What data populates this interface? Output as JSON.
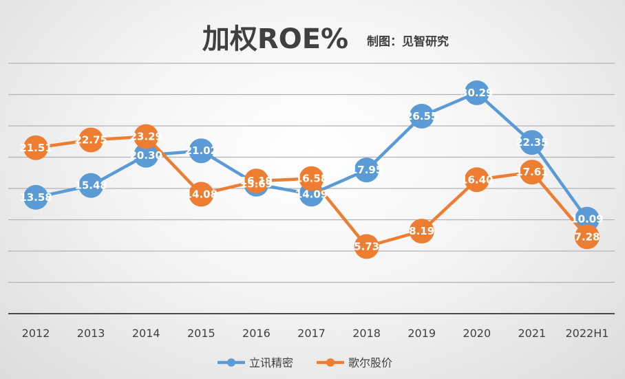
{
  "chart_data": {
    "type": "line",
    "title": "加权ROE%",
    "subtitle": "制图：见智研究",
    "categories": [
      "2012",
      "2013",
      "2014",
      "2015",
      "2016",
      "2017",
      "2018",
      "2019",
      "2020",
      "2021",
      "2022H1"
    ],
    "ylim": [
      -5,
      35
    ],
    "grid": true,
    "legend_position": "bottom",
    "series": [
      {
        "name": "立讯精密",
        "color": "#5b9bd5",
        "values": [
          13.58,
          15.48,
          20.3,
          21.02,
          15.69,
          14.09,
          17.95,
          26.55,
          30.29,
          22.35,
          10.09
        ],
        "labels": [
          "13.58",
          "15.48",
          "20.30",
          "21.02",
          "15.69",
          "14.09",
          "17.95",
          "26.55",
          "30.29",
          "22.35",
          "10.09"
        ]
      },
      {
        "name": "歌尔股价",
        "color": "#ed7d31",
        "values": [
          21.51,
          22.75,
          23.29,
          14.08,
          16.19,
          16.58,
          5.73,
          8.19,
          16.4,
          17.61,
          7.28
        ],
        "labels": [
          "21.51",
          "22.75",
          "23.29",
          "14.08",
          "16.19",
          "16.58",
          "5.73",
          "8.19",
          "16.40",
          "17.61",
          "7.28"
        ]
      }
    ]
  }
}
